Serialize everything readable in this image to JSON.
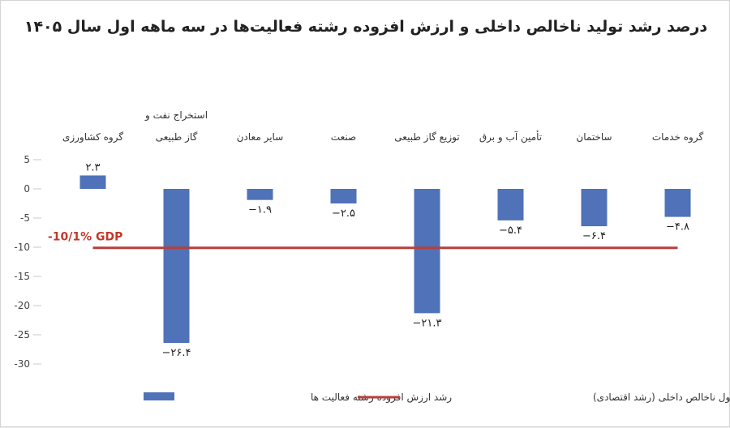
{
  "chart_data": {
    "type": "bar",
    "title": "درصد رشد تولید ناخالص داخلی و ارزش افزوده رشته فعالیت‌ها در سه ماهه اول سال ۱۴۰۵",
    "categories": [
      [
        "گروه کشاورزی"
      ],
      [
        "استخراج نفت و",
        "گاز طبیعی"
      ],
      [
        "سایر معادن"
      ],
      [
        "صنعت"
      ],
      [
        "توزیع گاز طبیعی"
      ],
      [
        "تأمین آب و برق"
      ],
      [
        "ساختمان"
      ],
      [
        "گروه خدمات"
      ]
    ],
    "values": [
      2.3,
      -26.4,
      -1.9,
      -2.5,
      -21.3,
      -5.4,
      -6.4,
      -4.8
    ],
    "value_labels": [
      "۲.۳",
      "−۲۶.۴",
      "−۱.۹",
      "−۲.۵",
      "−۲۱.۳",
      "−۵.۴",
      "−۶.۴",
      "−۴.۸"
    ],
    "series": [
      {
        "name": "رشد ارزش افزوده رشته فعالیت ها",
        "type": "bar",
        "color": "#4f72b8"
      },
      {
        "name": "رشد محصول ناخالص داخلی (رشد اقتصادی)",
        "type": "line",
        "value": -10.1,
        "color": "#b5403a"
      }
    ],
    "gdp_label": "-10/1%  GDP",
    "y_ticks": [
      5,
      0,
      -5,
      -10,
      -15,
      -20,
      -25,
      -30
    ],
    "y_tick_labels": [
      "5",
      "0",
      "-5",
      "-10",
      "-15",
      "-20",
      "-25",
      "-30"
    ],
    "ylim": [
      -30,
      5
    ],
    "grid": false,
    "legend_position": "bottom"
  }
}
